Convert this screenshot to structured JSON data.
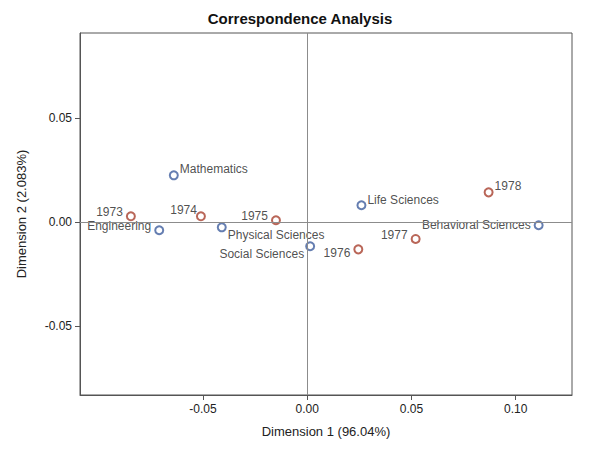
{
  "chart_data": {
    "type": "scatter",
    "title": "Correspondence Analysis",
    "x_label": "Dimension 1 (96.04%)",
    "y_label": "Dimension 2 (2.083%)",
    "xlim": [
      -0.109,
      0.127
    ],
    "ylim": [
      -0.083,
      0.091
    ],
    "xticks": [
      -0.05,
      {
        "value": 0,
        "label": "0.00"
      },
      0.05,
      {
        "value": 0.1,
        "label": "0.10"
      }
    ],
    "yticks": [
      -0.05,
      {
        "value": 0,
        "label": "0.00"
      },
      0.05
    ],
    "grid": false,
    "data_labels": true,
    "series": [
      {
        "color": "#3f5e9e",
        "marker": "hollow_circle",
        "labels": [
          "Mathematics",
          "Engineering",
          "Physical Sciences",
          "Social Sciences",
          "Life Sciences",
          "Behavioral Sciences"
        ],
        "x": [
          -0.064,
          -0.071,
          -0.041,
          0.0014,
          0.026,
          0.111
        ],
        "y": [
          0.0226,
          -0.0038,
          -0.0024,
          -0.0115,
          0.0082,
          -0.0014
        ]
      },
      {
        "color": "#a8402e",
        "marker": "hollow_circle",
        "labels": [
          "1973",
          "1974",
          "1975",
          "1976",
          "1977",
          "1978"
        ],
        "x": [
          -0.0846,
          -0.051,
          -0.015,
          0.0245,
          0.052,
          0.087
        ],
        "y": [
          0.0029,
          0.0029,
          0.001,
          -0.013,
          -0.008,
          0.0144
        ]
      }
    ]
  }
}
